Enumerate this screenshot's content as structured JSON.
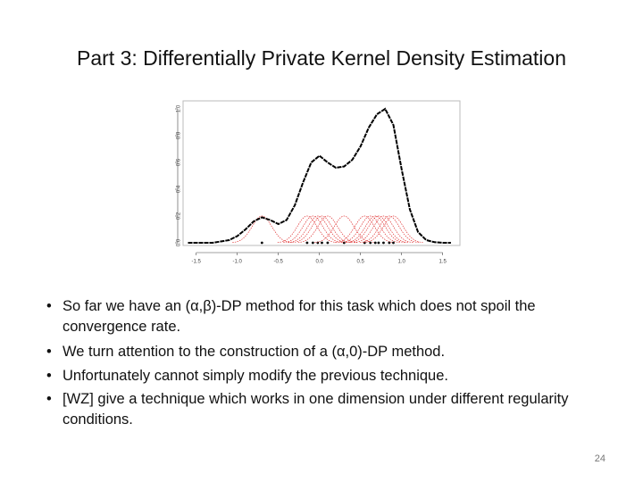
{
  "title": "Part 3: Differentially Private Kernel Density Estimation",
  "figure": {
    "type": "line",
    "x": [
      -1.6,
      -1.5,
      -1.4,
      -1.3,
      -1.2,
      -1.1,
      -1.0,
      -0.9,
      -0.8,
      -0.7,
      -0.6,
      -0.5,
      -0.4,
      -0.3,
      -0.2,
      -0.1,
      0.0,
      0.1,
      0.2,
      0.3,
      0.4,
      0.5,
      0.6,
      0.7,
      0.8,
      0.9,
      1.0,
      1.1,
      1.2,
      1.3,
      1.4,
      1.5,
      1.6
    ],
    "series": [
      {
        "color": "#000000",
        "values": [
          0,
          0,
          0,
          0,
          0.01,
          0.02,
          0.05,
          0.1,
          0.16,
          0.19,
          0.17,
          0.14,
          0.17,
          0.28,
          0.45,
          0.6,
          0.65,
          0.6,
          0.56,
          0.57,
          0.62,
          0.72,
          0.86,
          0.96,
          1.0,
          0.88,
          0.55,
          0.25,
          0.08,
          0.02,
          0.005,
          0,
          0
        ]
      }
    ],
    "kernel_centers": [
      -0.7,
      -0.15,
      -0.08,
      -0.02,
      0.03,
      0.1,
      0.3,
      0.55,
      0.62,
      0.68,
      0.72,
      0.78,
      0.85,
      0.9
    ],
    "kernel_height": 0.2,
    "kernel_color": "#e03030",
    "xlim": [
      -1.66,
      1.71
    ],
    "ylim": [
      -0.02,
      1.06
    ],
    "xticks": [
      -1.5,
      {
        "value": -1,
        "label": "-1.0"
      },
      -0.5,
      {
        "value": 0,
        "label": "0.0"
      },
      0.5,
      {
        "value": 1,
        "label": "1.0"
      },
      1.5
    ],
    "yticks": [
      {
        "value": 0,
        "label": "0.0"
      },
      0.2,
      0.4,
      0.6,
      0.8,
      {
        "value": 1,
        "label": "1.0"
      }
    ]
  },
  "bullets": [
    "So far we have an (α,β)-DP method for this task which does not spoil the convergence rate.",
    "We turn attention to the construction of a (α,0)-DP method.",
    "Unfortunately cannot simply modify the previous technique.",
    "[WZ] give a technique which works in one dimension under different regularity conditions."
  ],
  "page_number": "24"
}
